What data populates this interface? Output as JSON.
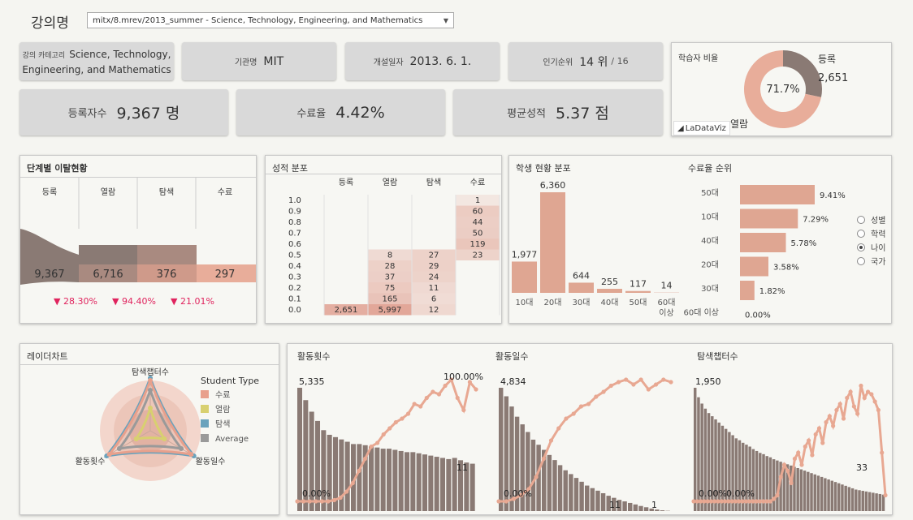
{
  "header": {
    "title": "강의명",
    "course_select": "mitx/8.mrev/2013_summer - Science, Technology, Engineering, and Mathematics"
  },
  "info": {
    "category_label": "강의 카테고리",
    "category_value": "Science, Technology, Engineering, and Mathematics",
    "org_label": "기관명",
    "org_value": "MIT",
    "open_label": "개설일자",
    "open_value": "2013. 6. 1.",
    "rank_label": "인기순위",
    "rank_value": "14 위",
    "rank_total": "/ 16"
  },
  "kpi": {
    "enroll_label": "등록자수",
    "enroll_value": "9,367 명",
    "complete_label": "수료율",
    "complete_value": "4.42%",
    "grade_label": "평균성적",
    "grade_value": "5.37 점"
  },
  "donut": {
    "title": "학습자 비율",
    "center": "71.7%",
    "label_reg": "등록",
    "value_reg": "2,651",
    "label_view": "열람",
    "logo": "LaDataViz",
    "colors": {
      "reg": "#8a7a74",
      "view": "#e8ad9a"
    }
  },
  "funnel": {
    "title": "단계별 이탈현황",
    "stages": [
      "등록",
      "열람",
      "탐색",
      "수료"
    ],
    "values": [
      "9,367",
      "6,716",
      "376",
      "297"
    ],
    "drops": [
      "▼ 28.30%",
      "▼ 94.40%",
      "▼ 21.01%"
    ],
    "colors": [
      "#8a7a74",
      "#a98a80",
      "#cf9a8a",
      "#e8ad9a"
    ],
    "drop_color": "#e0245e"
  },
  "grade": {
    "title": "성적 분포",
    "headers": [
      "등록",
      "열람",
      "탐색",
      "수료"
    ],
    "rows": [
      {
        "g": "1.0",
        "c": [
          "",
          "",
          "",
          "1"
        ]
      },
      {
        "g": "0.9",
        "c": [
          "",
          "",
          "",
          "60"
        ]
      },
      {
        "g": "0.8",
        "c": [
          "",
          "",
          "",
          "44"
        ]
      },
      {
        "g": "0.7",
        "c": [
          "",
          "",
          "",
          "50"
        ]
      },
      {
        "g": "0.6",
        "c": [
          "",
          "",
          "",
          "119"
        ]
      },
      {
        "g": "0.5",
        "c": [
          "",
          "8",
          "27",
          "23"
        ]
      },
      {
        "g": "0.4",
        "c": [
          "",
          "28",
          "29",
          ""
        ]
      },
      {
        "g": "0.3",
        "c": [
          "",
          "37",
          "24",
          ""
        ]
      },
      {
        "g": "0.2",
        "c": [
          "",
          "75",
          "11",
          ""
        ]
      },
      {
        "g": "0.1",
        "c": [
          "",
          "165",
          "6",
          ""
        ]
      },
      {
        "g": "0.0",
        "c": [
          "2,651",
          "5,997",
          "12",
          ""
        ]
      }
    ]
  },
  "students": {
    "title": "학생 현황 분포",
    "rank_title": "수료율 순위",
    "radio": [
      "성별",
      "학력",
      "나이",
      "국가"
    ],
    "selected_radio": 2
  },
  "radar": {
    "title": "레이더차트",
    "axes": [
      "탐색챕터수",
      "활동횟수",
      "활동일수"
    ],
    "legend_title": "Student Type",
    "legend": [
      {
        "name": "수료",
        "color": "#e8a08c"
      },
      {
        "name": "열람",
        "color": "#d8d070"
      },
      {
        "name": "탐색",
        "color": "#6aa2bc"
      },
      {
        "name": "Average",
        "color": "#9a9a9a"
      }
    ]
  },
  "activity": {
    "titles": [
      "활동횟수",
      "활동일수",
      "탐색챕터수"
    ]
  },
  "chart_data": [
    {
      "type": "bar",
      "title": "학생 현황 분포",
      "categories": [
        "10대",
        "20대",
        "30대",
        "40대",
        "50대",
        "60대 이상"
      ],
      "values": [
        1977,
        6360,
        644,
        255,
        117,
        14
      ]
    },
    {
      "type": "bar",
      "title": "수료율 순위",
      "categories": [
        "50대",
        "10대",
        "40대",
        "20대",
        "30대",
        "60대 이상"
      ],
      "values": [
        9.41,
        7.29,
        5.78,
        3.58,
        1.82,
        0.0
      ],
      "labels": [
        "9.41%",
        "7.29%",
        "5.78%",
        "3.58%",
        "1.82%",
        "0.00%"
      ]
    },
    {
      "type": "pie",
      "title": "학습자 비율",
      "categories": [
        "등록",
        "열람"
      ],
      "values": [
        28.3,
        71.7
      ]
    },
    {
      "type": "bar",
      "title": "활동횟수",
      "bars": [
        5335,
        4800,
        4300,
        3900,
        3500,
        3300,
        3200,
        3100,
        3000,
        2900,
        2900,
        2850,
        2800,
        2750,
        2700,
        2700,
        2650,
        2600,
        2550,
        2550,
        2500,
        2450,
        2400,
        2350,
        2300,
        2250,
        2300,
        2200,
        2100,
        2050
      ],
      "line": [
        0,
        0,
        0,
        0,
        0,
        0,
        1,
        3,
        8,
        15,
        25,
        35,
        45,
        48,
        55,
        60,
        65,
        68,
        72,
        80,
        78,
        85,
        90,
        88,
        95,
        100,
        85,
        75,
        98,
        92
      ],
      "labels": [
        "5,335",
        "11",
        "0.00%",
        "100.00%"
      ]
    },
    {
      "type": "bar",
      "title": "활동일수",
      "bars": [
        4834,
        4500,
        4100,
        3700,
        3400,
        3100,
        2800,
        2600,
        2400,
        2200,
        2000,
        1800,
        1600,
        1450,
        1300,
        1150,
        1000,
        900,
        800,
        700,
        600,
        520,
        440,
        380,
        320,
        260,
        200,
        150,
        100,
        60,
        30,
        11
      ],
      "line": [
        0,
        0,
        2,
        5,
        10,
        20,
        35,
        50,
        60,
        68,
        72,
        78,
        80,
        86,
        90,
        95,
        98,
        100,
        96,
        100,
        92,
        96,
        100,
        98
      ],
      "labels": [
        "4,834",
        "11",
        "0.00%",
        "1"
      ]
    },
    {
      "type": "bar",
      "title": "탐색챕터수",
      "bars": [
        1950,
        1800,
        1700,
        1620,
        1550,
        1500,
        1450,
        1400,
        1350,
        1300,
        1250,
        1200,
        1150,
        1120,
        1080,
        1050,
        1020,
        980,
        950,
        920,
        900,
        870,
        850,
        820,
        800,
        780,
        760,
        740,
        720,
        700,
        680,
        660,
        640,
        620,
        600,
        580,
        560,
        540,
        520,
        500,
        480,
        460,
        440,
        420,
        400,
        380,
        360,
        340,
        330,
        320,
        310,
        300,
        290,
        280,
        270,
        260
      ],
      "line": [
        0,
        0,
        0,
        0,
        0,
        0,
        0,
        0,
        0,
        0,
        0,
        0,
        0,
        0,
        0,
        0,
        0,
        0,
        0,
        0,
        0,
        0,
        0,
        2,
        5,
        20,
        30,
        25,
        15,
        35,
        40,
        30,
        45,
        50,
        38,
        55,
        60,
        48,
        65,
        70,
        62,
        75,
        80,
        68,
        85,
        90,
        78,
        72,
        95,
        85,
        90,
        88,
        82,
        75,
        40,
        5
      ],
      "labels": [
        "1,950",
        "33",
        "0.00%",
        "0.00%"
      ]
    }
  ]
}
